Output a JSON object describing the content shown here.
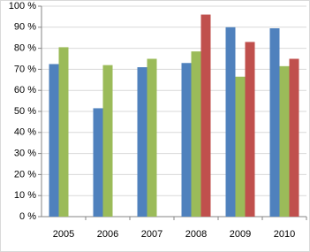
{
  "chart_data": {
    "type": "bar",
    "categories": [
      "2005",
      "2006",
      "2007",
      "2008",
      "2009",
      "2010"
    ],
    "series": [
      {
        "color": "#4f81bd",
        "values": [
          72.5,
          51.5,
          71,
          73,
          90,
          89.5
        ]
      },
      {
        "color": "#9bbb59",
        "values": [
          80.5,
          72,
          75,
          78.5,
          66.5,
          71.5
        ]
      },
      {
        "color": "#c0504d",
        "values": [
          null,
          null,
          null,
          96,
          83,
          75
        ]
      }
    ],
    "ylim": [
      0,
      100
    ],
    "yticks": [
      {
        "value": 0,
        "label": "0 %"
      },
      {
        "value": 10,
        "label": "10 %"
      },
      {
        "value": 20,
        "label": "20 %"
      },
      {
        "value": 30,
        "label": "30 %"
      },
      {
        "value": 40,
        "label": "40 %"
      },
      {
        "value": 50,
        "label": "50 %"
      },
      {
        "value": 60,
        "label": "60 %"
      },
      {
        "value": 70,
        "label": "70 %"
      },
      {
        "value": 80,
        "label": "80 %"
      },
      {
        "value": 90,
        "label": "90 %"
      },
      {
        "value": 100,
        "label": "100 %"
      }
    ],
    "grid": true
  }
}
